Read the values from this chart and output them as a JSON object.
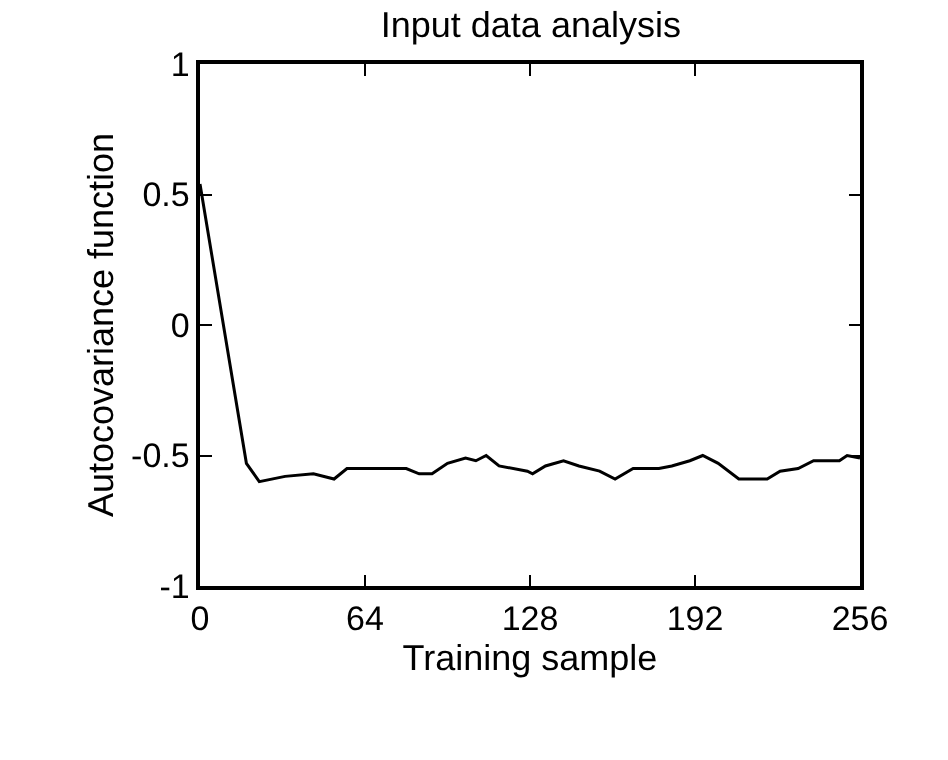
{
  "chart_data": {
    "type": "line",
    "title": "Input data analysis",
    "xlabel": "Training sample",
    "ylabel": "Autocovariance function",
    "x": [
      0,
      18,
      23,
      33,
      44,
      52,
      57,
      70,
      80,
      85,
      90,
      96,
      103,
      107,
      111,
      116,
      127,
      129,
      134,
      141,
      147,
      155,
      161,
      168,
      178,
      183,
      190,
      195,
      201,
      209,
      220,
      225,
      232,
      238,
      248,
      251,
      256
    ],
    "series": [
      {
        "color": "#000000",
        "values": [
          0.54,
          -0.53,
          -0.6,
          -0.58,
          -0.57,
          -0.59,
          -0.55,
          -0.55,
          -0.55,
          -0.57,
          -0.57,
          -0.53,
          -0.51,
          -0.52,
          -0.5,
          -0.54,
          -0.56,
          -0.57,
          -0.54,
          -0.52,
          -0.54,
          -0.56,
          -0.59,
          -0.55,
          -0.55,
          -0.54,
          -0.52,
          -0.5,
          -0.53,
          -0.59,
          -0.59,
          -0.56,
          -0.55,
          -0.52,
          -0.52,
          -0.5,
          -0.51
        ]
      }
    ],
    "xlim": [
      0,
      256
    ],
    "xticks": [
      0,
      64,
      128,
      192,
      256
    ],
    "ylim": [
      -1,
      1
    ],
    "yticks": [
      -1,
      -0.5,
      0,
      0.5,
      1
    ],
    "grid": false,
    "marker": "none",
    "line_style": "solid"
  }
}
